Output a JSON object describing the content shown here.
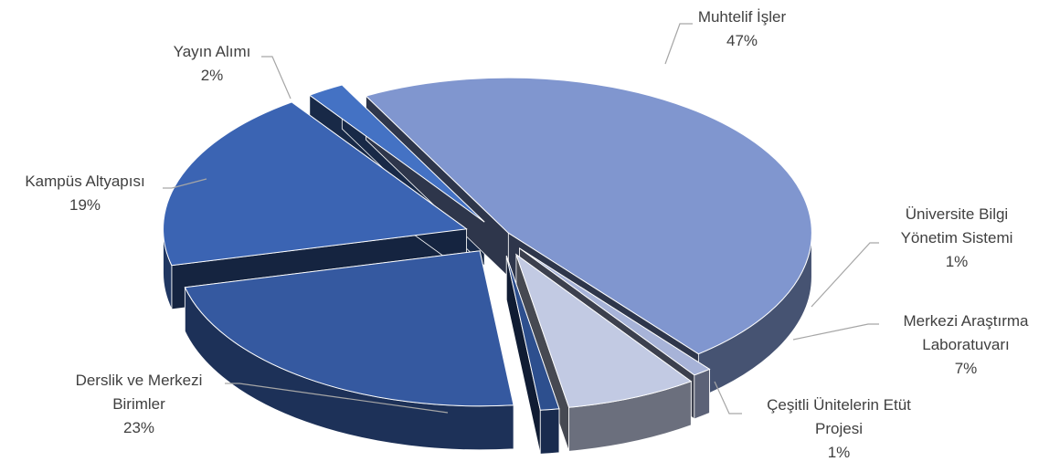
{
  "chart_data": {
    "type": "pie",
    "style": "exploded-3d",
    "title": "",
    "legend": "none",
    "slices": [
      {
        "label_lines": [
          "Muhtelif İşler"
        ],
        "percent_label": "47%",
        "value": 47,
        "color": "#8096cf"
      },
      {
        "label_lines": [
          "Üniversite Bilgi",
          "Yönetim Sistemi"
        ],
        "percent_label": "1%",
        "value": 1,
        "color": "#a7b3d8"
      },
      {
        "label_lines": [
          "Merkezi Araştırma",
          "Laboratuvarı"
        ],
        "percent_label": "7%",
        "value": 7,
        "color": "#c2cae3"
      },
      {
        "label_lines": [
          "Çeşitli Ünitelerin Etüt",
          "Projesi"
        ],
        "percent_label": "1%",
        "value": 1,
        "color": "#2d4f8e"
      },
      {
        "label_lines": [
          "Derslik ve Merkezi",
          "Birimler"
        ],
        "percent_label": "23%",
        "value": 23,
        "color": "#3559a0"
      },
      {
        "label_lines": [
          "Kampüs Altyapısı"
        ],
        "percent_label": "19%",
        "value": 19,
        "color": "#3b64b3"
      },
      {
        "label_lines": [
          "Yayın Alımı"
        ],
        "percent_label": "2%",
        "value": 2,
        "color": "#4472c4"
      }
    ]
  }
}
